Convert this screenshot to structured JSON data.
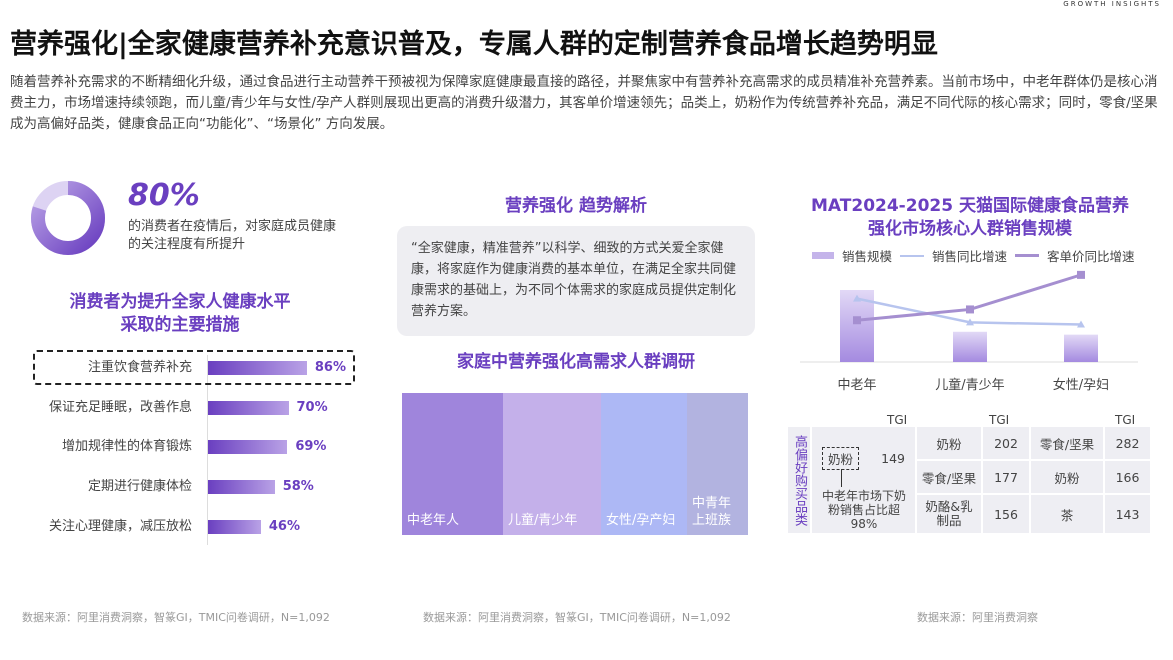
{
  "logo": "GROWTH INSIGHTS",
  "title": "营养强化|全家健康营养补充意识普及，专属人群的定制营养食品增长趋势明显",
  "intro": "随着营养补充需求的不断精细化升级，通过食品进行主动营养干预被视为保障家庭健康最直接的路径，并聚焦家中有营养补充高需求的成员精准补充营养素。当前市场中，中老年群体仍是核心消费主力，市场增速持续领跑，而儿童/青少年与女性/孕产人群则展现出更高的消费升级潜力，其客单价增速领先；品类上，奶粉作为传统营养补充品，满足不同代际的核心需求；同时，零食/坚果成为高偏好品类，健康食品正向“功能化”、“场景化” 方向发展。",
  "stat": {
    "value": "80%",
    "value_fraction": 0.8,
    "desc": "的消费者在疫情后，对家庭成员健康的关注程度有所提升"
  },
  "colors": {
    "accent": "#6a3fc0",
    "bar_light": "#b9a2e6",
    "line_sales": "#b7c4ee",
    "line_price": "#a58fd0"
  },
  "chart_data": [
    {
      "type": "bar",
      "orientation": "horizontal",
      "title": "消费者为提升全家人健康水平采取的主要措施",
      "categories": [
        "注重饮食营养补充",
        "保证充足睡眠，改善作息",
        "增加规律性的体育锻炼",
        "定期进行健康体检",
        "关注心理健康，减压放松"
      ],
      "values": [
        86,
        70,
        69,
        58,
        46
      ],
      "labels": [
        "86%",
        "70%",
        "69%",
        "58%",
        "46%"
      ],
      "highlight": "注重饮食营养补充"
    },
    {
      "type": "bar",
      "title": "MAT2024-2025 天猫国际健康食品营养强化市场核心人群销售规模",
      "categories": [
        "中老年",
        "儿童/青少年",
        "女性/孕妇"
      ],
      "series": [
        {
          "name": "销售规模",
          "kind": "bar",
          "values": [
            100,
            42,
            38
          ]
        },
        {
          "name": "销售同比增速",
          "kind": "line",
          "values": [
            88,
            55,
            52
          ]
        },
        {
          "name": "客单价同比增速",
          "kind": "line",
          "values": [
            58,
            73,
            121
          ]
        }
      ],
      "note": "no axis values printed; relative estimates"
    }
  ],
  "left": {
    "title1": "消费者为提升全家人健康水平",
    "title2": "采取的主要措施",
    "source": "数据来源：阿里消费洞察，智篆GI，TMIC问卷调研，N=1,092"
  },
  "middle": {
    "trend_title": "营养强化 趋势解析",
    "trend_text": "“全家健康，精准营养”以科学、细致的方式关爱全家健康，将家庭作为健康消费的基本单位，在满足全家共同健康需求的基础上，为不同个体需求的家庭成员提供定制化营养方案。",
    "survey_title": "家庭中营养强化高需求人群调研",
    "blocks": [
      {
        "label": "中老年人",
        "color": "#9f85dc"
      },
      {
        "label": "儿童/青少年",
        "color": "#c4b0ea"
      },
      {
        "label": "女性/孕产妇",
        "color": "#adb8f5"
      },
      {
        "label": "中青年上班族",
        "color": "#b2b3e0"
      }
    ],
    "source": "数据来源：阿里消费洞察，智篆GI，TMIC问卷调研，N=1,092"
  },
  "right": {
    "title1": "MAT2024-2025 天猫国际健康食品营养",
    "title2": "强化市场核心人群销售规模",
    "legend": [
      "销售规模",
      "销售同比增速",
      "客单价同比增速"
    ],
    "table": {
      "side_label": "高偏好购买品类",
      "tgi": "TGI",
      "g1": {
        "name": "奶粉",
        "tgi": "149",
        "note": "中老年市场下奶粉销售占比超98%"
      },
      "g2": [
        [
          "奶粉",
          "202"
        ],
        [
          "零食/坚果",
          "177"
        ],
        [
          "奶酪&乳制品",
          "156"
        ]
      ],
      "g3": [
        [
          "零食/坚果",
          "282"
        ],
        [
          "奶粉",
          "166"
        ],
        [
          "茶",
          "143"
        ]
      ]
    },
    "source": "数据来源：阿里消费洞察"
  }
}
